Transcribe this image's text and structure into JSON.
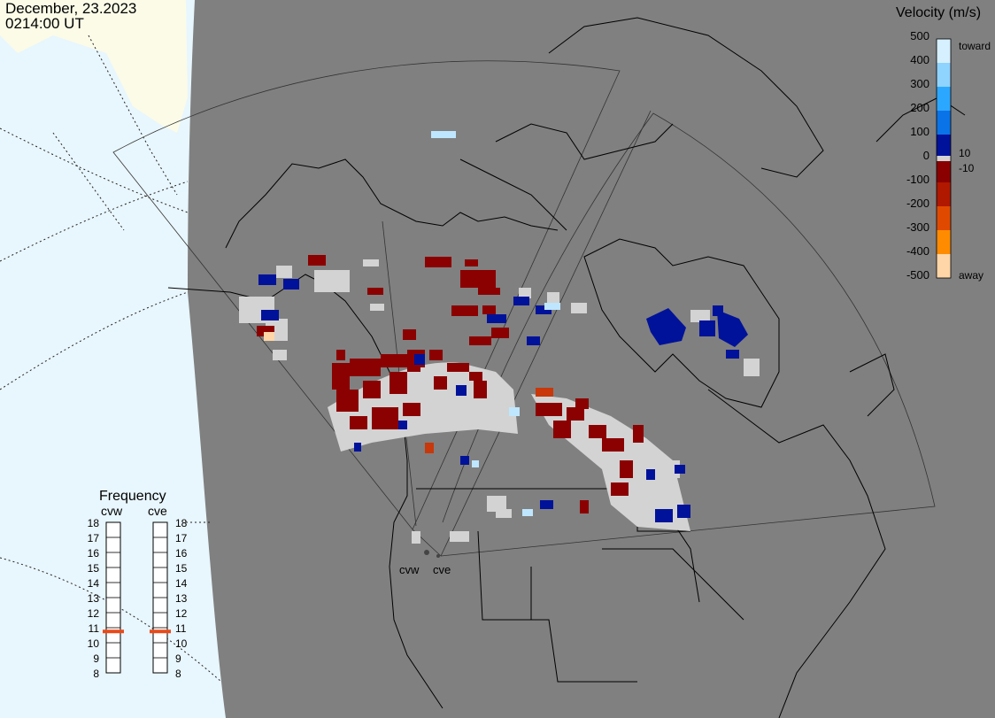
{
  "header": {
    "date": "December, 23.2023",
    "time": "0214:00 UT"
  },
  "legend": {
    "title": "Velocity (m/s)",
    "ticks": [
      "500",
      "400",
      "300",
      "200",
      "100",
      "0",
      "-100",
      "-200",
      "-300",
      "-400",
      "-500"
    ],
    "inner_plus": "10",
    "inner_minus": "-10",
    "toward_label": "toward",
    "away_label": "away",
    "colors": [
      "#d6f0ff",
      "#8fd3ff",
      "#2ca7ff",
      "#0a73e8",
      "#0a4bc0",
      "#00129a",
      "#8a0000",
      "#b01800",
      "#e04a00",
      "#ff8c00",
      "#ffd6a8"
    ]
  },
  "frequency": {
    "title": "Frequency",
    "radars": [
      "cvw",
      "cve"
    ],
    "scale": [
      "18",
      "17",
      "16",
      "15",
      "14",
      "13",
      "12",
      "11",
      "10",
      "9",
      "8"
    ],
    "values_mhz": [
      10.75,
      10.75
    ],
    "marker_color": "#e84a1a"
  },
  "radar_sites": [
    "cvw",
    "cve"
  ],
  "colors": {
    "ocean": "#e8f6fd",
    "land_outside": "#fbfbe8",
    "map_field": "#808080",
    "ground_scatter": "#d3d3d3"
  }
}
